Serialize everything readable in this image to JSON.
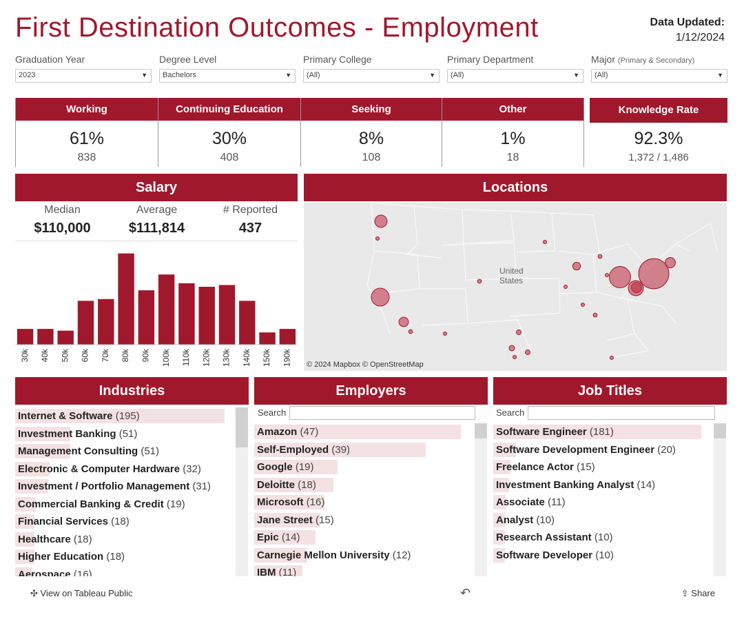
{
  "title": "First Destination Outcomes - Employment",
  "updated": {
    "label": "Data Updated:",
    "date": "1/12/2024"
  },
  "filters": [
    {
      "label": "Graduation Year",
      "value": "2023"
    },
    {
      "label": "Degree Level",
      "value": "Bachelors"
    },
    {
      "label": "Primary College",
      "value": "(All)"
    },
    {
      "label": "Primary Department",
      "value": "(All)"
    },
    {
      "label": "Major",
      "label_note": "(Primary & Secondary)",
      "value": "(All)"
    }
  ],
  "kpis": [
    {
      "label": "Working",
      "pct": "61%",
      "count": "838"
    },
    {
      "label": "Continuing Education",
      "pct": "30%",
      "count": "408"
    },
    {
      "label": "Seeking",
      "pct": "8%",
      "count": "108"
    },
    {
      "label": "Other",
      "pct": "1%",
      "count": "18"
    },
    {
      "label": "Knowledge Rate",
      "pct": "92.3%",
      "count": "1,372 / 1,486"
    }
  ],
  "salary": {
    "title": "Salary",
    "median_label": "Median",
    "median": "$110,000",
    "average_label": "Average",
    "average": "$111,814",
    "reported_label": "# Reported",
    "reported": "437"
  },
  "chart_data": {
    "type": "bar",
    "categories": [
      "30k",
      "40k",
      "50k",
      "60k",
      "70k",
      "80k",
      "90k",
      "100k",
      "110k",
      "120k",
      "130k",
      "140k",
      "150k",
      "190k"
    ],
    "values": [
      9,
      9,
      8,
      25,
      26,
      52,
      31,
      40,
      35,
      33,
      34,
      25,
      7,
      9
    ],
    "ylim": [
      0,
      55
    ]
  },
  "locations": {
    "title": "Locations",
    "country_label": "United States",
    "credit": "© 2024 Mapbox  © OpenStreetMap",
    "dots": [
      {
        "name": "Seattle",
        "value": 20
      },
      {
        "name": "Portland",
        "value": 1
      },
      {
        "name": "San Francisco Bay Area",
        "value": 42
      },
      {
        "name": "Los Angeles",
        "value": 12
      },
      {
        "name": "San Diego",
        "value": 2
      },
      {
        "name": "Denver",
        "value": 2
      },
      {
        "name": "Phoenix",
        "value": 1
      },
      {
        "name": "Dallas",
        "value": 3
      },
      {
        "name": "Austin",
        "value": 4
      },
      {
        "name": "Houston",
        "value": 3
      },
      {
        "name": "San Antonio",
        "value": 1
      },
      {
        "name": "Minneapolis",
        "value": 1
      },
      {
        "name": "Chicago",
        "value": 8
      },
      {
        "name": "Detroit",
        "value": 2
      },
      {
        "name": "Pittsburgh",
        "value": 60
      },
      {
        "name": "Philadelphia",
        "value": 14
      },
      {
        "name": "New York",
        "value": 120
      },
      {
        "name": "Boston",
        "value": 14
      },
      {
        "name": "Washington DC",
        "value": 30
      },
      {
        "name": "Atlanta",
        "value": 2
      },
      {
        "name": "Miami",
        "value": 1
      },
      {
        "name": "Nashville",
        "value": 1
      },
      {
        "name": "Columbus",
        "value": 1
      },
      {
        "name": "St. Louis",
        "value": 1
      }
    ]
  },
  "industries": {
    "title": "Industries",
    "max": 195,
    "items": [
      {
        "name": "Internet & Software",
        "count": 195,
        "label": "(195)"
      },
      {
        "name": "Investment Banking",
        "count": 51,
        "label": "(51)"
      },
      {
        "name": "Management Consulting",
        "count": 51,
        "label": "(51)"
      },
      {
        "name": "Electronic & Computer Hardware",
        "count": 32,
        "label": "(32)"
      },
      {
        "name": "Investment / Portfolio Management",
        "count": 31,
        "label": "(31)"
      },
      {
        "name": "Commercial Banking & Credit",
        "count": 19,
        "label": "(19)"
      },
      {
        "name": "Financial Services",
        "count": 18,
        "label": "(18)"
      },
      {
        "name": "Healthcare",
        "count": 18,
        "label": "(18)"
      },
      {
        "name": "Higher Education",
        "count": 18,
        "label": "(18)"
      },
      {
        "name": "Aerospace",
        "count": 16,
        "label": "(16)"
      }
    ]
  },
  "employers": {
    "title": "Employers",
    "search_label": "Search",
    "max": 47,
    "items": [
      {
        "name": "Amazon",
        "count": 47,
        "label": "(47)"
      },
      {
        "name": "Self-Employed",
        "count": 39,
        "label": "(39)"
      },
      {
        "name": "Google",
        "count": 19,
        "label": "(19)"
      },
      {
        "name": "Deloitte",
        "count": 18,
        "label": "(18)"
      },
      {
        "name": "Microsoft",
        "count": 16,
        "label": "(16)"
      },
      {
        "name": "Jane Street",
        "count": 15,
        "label": "(15)"
      },
      {
        "name": "Epic",
        "count": 14,
        "label": "(14)"
      },
      {
        "name": "Carnegie Mellon University",
        "count": 12,
        "label": "(12)"
      },
      {
        "name": "IBM",
        "count": 11,
        "label": "(11)"
      }
    ]
  },
  "jobs": {
    "title": "Job Titles",
    "search_label": "Search",
    "max": 181,
    "items": [
      {
        "name": "Software Engineer",
        "count": 181,
        "label": "(181)"
      },
      {
        "name": "Software Development Engineer",
        "count": 20,
        "label": "(20)"
      },
      {
        "name": "Freelance Actor",
        "count": 15,
        "label": "(15)"
      },
      {
        "name": "Investment Banking Analyst",
        "count": 14,
        "label": "(14)"
      },
      {
        "name": "Associate",
        "count": 11,
        "label": "(11)"
      },
      {
        "name": "Analyst",
        "count": 10,
        "label": "(10)"
      },
      {
        "name": "Research Assistant",
        "count": 10,
        "label": "(10)"
      },
      {
        "name": "Software Developer",
        "count": 10,
        "label": "(10)"
      }
    ]
  },
  "footer": {
    "tableau_link": "View on Tableau Public",
    "share": "Share"
  },
  "colors": {
    "brand": "#a0182c",
    "bar_bg": "#f3e1e3",
    "map_bg": "#e9e9e9"
  }
}
